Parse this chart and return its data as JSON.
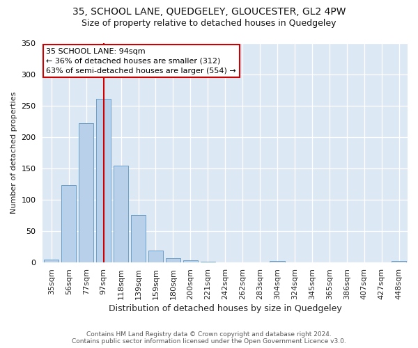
{
  "title1": "35, SCHOOL LANE, QUEDGELEY, GLOUCESTER, GL2 4PW",
  "title2": "Size of property relative to detached houses in Quedgeley",
  "xlabel": "Distribution of detached houses by size in Quedgeley",
  "ylabel": "Number of detached properties",
  "categories": [
    "35sqm",
    "56sqm",
    "77sqm",
    "97sqm",
    "118sqm",
    "139sqm",
    "159sqm",
    "180sqm",
    "200sqm",
    "221sqm",
    "242sqm",
    "262sqm",
    "283sqm",
    "304sqm",
    "324sqm",
    "345sqm",
    "365sqm",
    "386sqm",
    "407sqm",
    "427sqm",
    "448sqm"
  ],
  "values": [
    5,
    123,
    222,
    261,
    154,
    76,
    19,
    7,
    4,
    1,
    0,
    0,
    0,
    2,
    0,
    0,
    0,
    0,
    0,
    0,
    2
  ],
  "bar_color": "#b8d0ea",
  "bar_edge_color": "#6a9fc8",
  "vline_color": "#cc0000",
  "vline_x": 3.0,
  "annotation_text": "35 SCHOOL LANE: 94sqm\n← 36% of detached houses are smaller (312)\n63% of semi-detached houses are larger (554) →",
  "plot_bg_color": "#dde8f5",
  "footer1": "Contains HM Land Registry data © Crown copyright and database right 2024.",
  "footer2": "Contains public sector information licensed under the Open Government Licence v3.0.",
  "ylim": [
    0,
    350
  ],
  "yticks": [
    0,
    50,
    100,
    150,
    200,
    250,
    300,
    350
  ],
  "title1_fontsize": 10,
  "title2_fontsize": 9,
  "ylabel_fontsize": 8,
  "xlabel_fontsize": 9,
  "tick_fontsize": 8
}
